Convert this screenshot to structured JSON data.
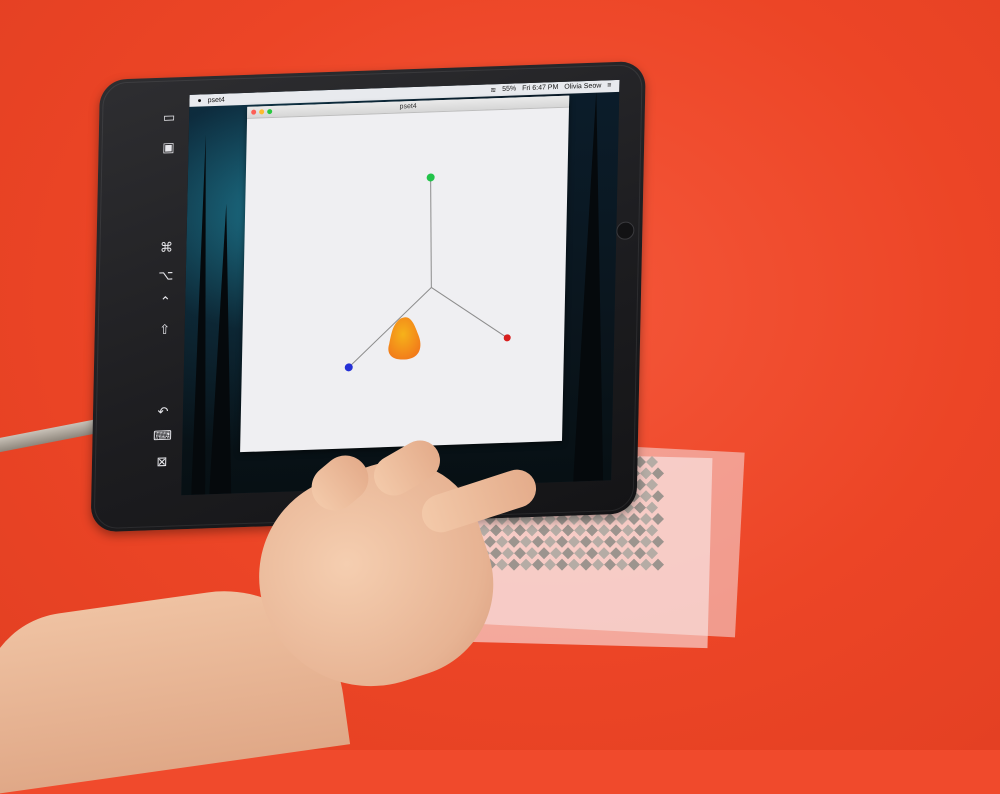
{
  "scene": {
    "background_color": "#f04a2c",
    "description_objects": [
      "tablet",
      "sensor-sheet",
      "hand"
    ]
  },
  "menubar": {
    "app_name": "pset4",
    "clock": "Fri 6:47 PM",
    "user": "Olivia Seow",
    "battery": "55%"
  },
  "window": {
    "title": "pset4"
  },
  "plot": {
    "nodes": [
      {
        "name": "top",
        "color": "#22c34a"
      },
      {
        "name": "right",
        "color": "#d81e1e"
      },
      {
        "name": "left",
        "color": "#2430d6"
      }
    ],
    "blob_colors": [
      "#f6b21a",
      "#f27a1a"
    ]
  },
  "touchbar": {
    "icons": [
      "window-icon",
      "screen-icon",
      "command-icon",
      "option-icon",
      "control-icon",
      "shift-icon",
      "undo-icon",
      "keyboard-icon",
      "hide-icon"
    ],
    "glyphs": [
      "▭",
      "▣",
      "⌘",
      "⌥",
      "⌃",
      "⇧",
      "↶",
      "⌨",
      "⊠"
    ]
  }
}
